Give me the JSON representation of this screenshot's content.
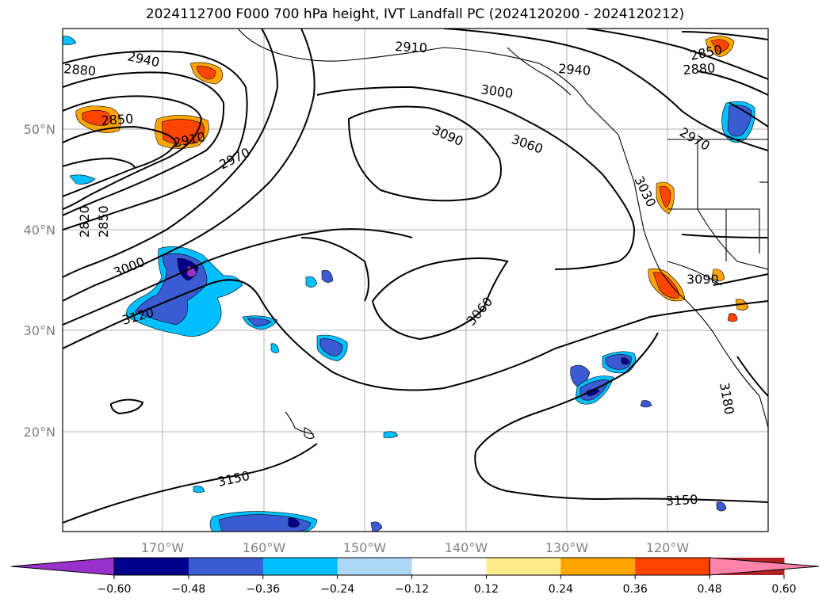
{
  "title": "2024112700 F000 700 hPa height, IVT Landfall PC (2024120200 - 2024120212)",
  "axes": {
    "lon_labels": [
      "170°W",
      "160°W",
      "150°W",
      "140°W",
      "130°W",
      "120°W"
    ],
    "lat_labels": [
      "50°N",
      "40°N",
      "30°N",
      "20°N"
    ]
  },
  "contour_labels": [
    "2880",
    "2940",
    "2910",
    "2940",
    "3000",
    "2850",
    "2880",
    "2850",
    "2910",
    "2970",
    "3090",
    "3060",
    "2970",
    "2820",
    "2850",
    "3030",
    "3000",
    "3090",
    "3120",
    "3060",
    "3180",
    "3150",
    "3150"
  ],
  "colorbar": {
    "ticks": [
      "−0.60",
      "−0.48",
      "−0.36",
      "−0.24",
      "−0.12",
      "0.12",
      "0.24",
      "0.36",
      "0.48",
      "0.60"
    ],
    "colors": [
      "#9932cc",
      "#00008b",
      "#3a5bd1",
      "#00bfff",
      "#add8f5",
      "#ffffff",
      "#ffec8b",
      "#ffa500",
      "#ff4500",
      "#b22222",
      "#ff82ab"
    ]
  }
}
